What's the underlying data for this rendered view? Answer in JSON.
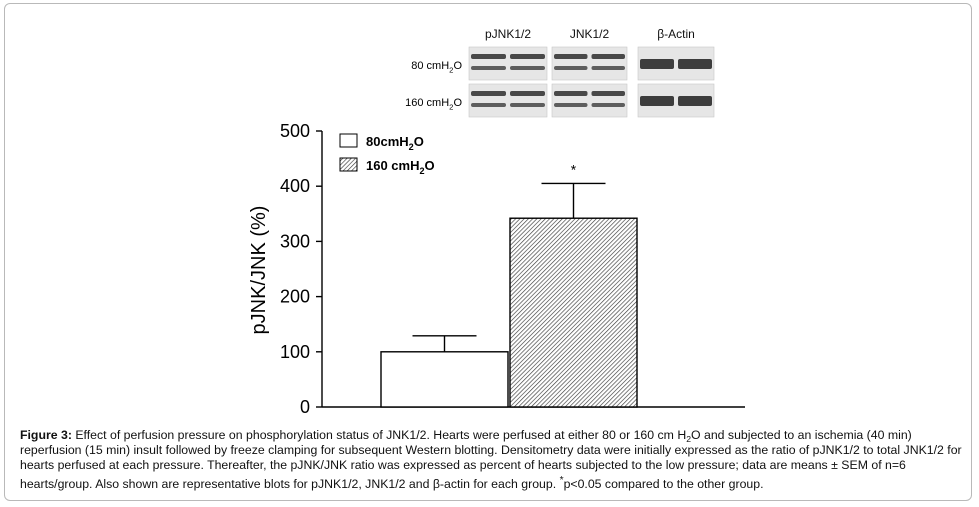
{
  "chart_data": {
    "type": "bar",
    "categories": [
      "80cmH₂O",
      "160 cmH₂O"
    ],
    "values": [
      100,
      342
    ],
    "errors": [
      29,
      63
    ],
    "ylabel": "pJNK/JNK (%)",
    "xlabel": "",
    "ylim": [
      0,
      500
    ],
    "yticks": [
      0,
      100,
      200,
      300,
      400,
      500
    ],
    "legend": {
      "placement": "top-left",
      "entries": [
        {
          "label": "80cmH",
          "sub": "2",
          "suffix": "O",
          "fill": "white"
        },
        {
          "label": "160 cmH",
          "sub": "2",
          "suffix": "O",
          "fill": "hatched"
        }
      ]
    },
    "annotations": [
      {
        "text": "*",
        "target": "160 cmH₂O"
      }
    ],
    "colors": {
      "axis": "#000000",
      "bar_edge": "#000000",
      "hatch": "#3a3a3a"
    }
  },
  "blots": {
    "columns": [
      "pJNK1/2",
      "JNK1/2",
      "β-Actin"
    ],
    "rows": [
      {
        "label": "80 cmH",
        "sub": "2",
        "suffix": "O"
      },
      {
        "label": "160 cmH",
        "sub": "2",
        "suffix": "O"
      }
    ]
  },
  "caption": {
    "label": "Figure 3:",
    "part1": " Effect of perfusion pressure on phosphorylation status of JNK1/2. Hearts were perfused at either 80 or 160 cm H",
    "sub": "2",
    "part2": "O and subjected to an ischemia (40 min) reperfusion (15 min) insult followed by freeze clamping for subsequent Western blotting. Densitometry data were initially expressed as the ratio of pJNK1/2 to total JNK1/2 for hearts perfused at each pressure. Thereafter, the pJNK/JNK ratio was expressed as percent of hearts subjected to the low pressure; data are means ± SEM of n=6 hearts/group. Also shown are representative blots for pJNK1/2, JNK1/2 and β-actin for each group. ",
    "sup": "*",
    "part3": "p<0.05 compared to the other group."
  }
}
